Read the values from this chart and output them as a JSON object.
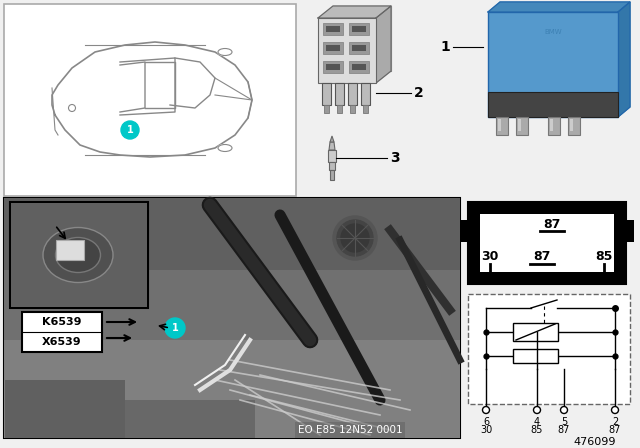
{
  "bg_color": "#f0f0f0",
  "car_box_bg": "#ffffff",
  "car_box_border": "#000000",
  "car_line_color": "#888888",
  "circle1_color": "#00c8c8",
  "photo_bg_dark": "#707070",
  "photo_bg_mid": "#909090",
  "photo_bg_light": "#b0b0b0",
  "inset_bg": "#606060",
  "relay_blue": "#5599cc",
  "relay_gray": "#aaaaaa",
  "relay_dark": "#333333",
  "sock_black": "#111111",
  "sock_white": "#ffffff",
  "sch_dash_color": "#555555",
  "label_white": "#ffffff",
  "label_black": "#111111",
  "part_num": "476099",
  "eo_text": "EO E85 12N52 0001",
  "k_text": "K6539",
  "x_text": "X6539"
}
